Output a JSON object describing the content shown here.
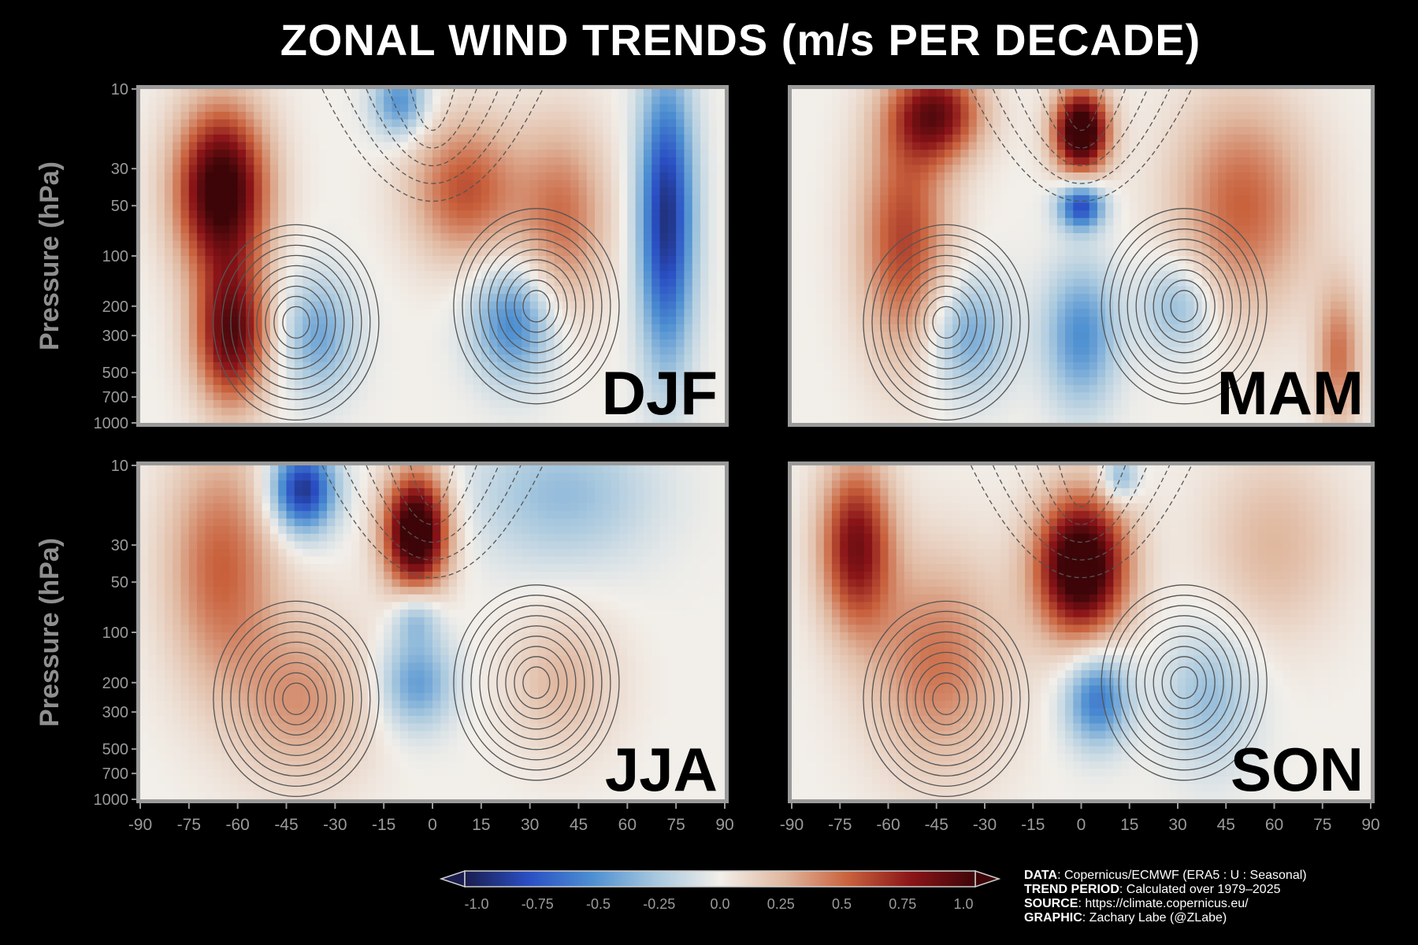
{
  "chart_data": {
    "type": "heatmap",
    "title": "ZONAL WIND TRENDS (m/s PER DECADE)",
    "ylabel": "Pressure (hPa)",
    "x_ticks": [
      "-90",
      "-75",
      "-60",
      "-45",
      "-30",
      "-15",
      "0",
      "15",
      "30",
      "45",
      "60",
      "75",
      "90"
    ],
    "x_values": [
      -90,
      -75,
      -60,
      -45,
      -30,
      -15,
      0,
      15,
      30,
      45,
      60,
      75,
      90
    ],
    "y_ticks": [
      "10",
      "30",
      "50",
      "100",
      "200",
      "300",
      "500",
      "700",
      "1000"
    ],
    "y_values": [
      10,
      30,
      50,
      100,
      200,
      300,
      500,
      700,
      1000
    ],
    "y_scale": "log",
    "xlim": [
      -90,
      90
    ],
    "ylim": [
      1000,
      10
    ],
    "panels": [
      {
        "label": "DJF",
        "blobs": [
          {
            "lat": -65,
            "p": 40,
            "amp": 1.1,
            "sx": 10,
            "sy": 0.35
          },
          {
            "lat": -62,
            "p": 300,
            "amp": 0.9,
            "sx": 8,
            "sy": 0.3
          },
          {
            "lat": -35,
            "p": 300,
            "amp": -0.4,
            "sx": 8,
            "sy": 0.25
          },
          {
            "lat": 25,
            "p": 250,
            "amp": -0.55,
            "sx": 9,
            "sy": 0.25
          },
          {
            "lat": 10,
            "p": 40,
            "amp": 0.55,
            "sx": 12,
            "sy": 0.3
          },
          {
            "lat": 72,
            "p": 60,
            "amp": -0.9,
            "sx": 6,
            "sy": 0.6
          },
          {
            "lat": -10,
            "p": 12,
            "amp": -0.5,
            "sx": 6,
            "sy": 0.15
          },
          {
            "lat": 40,
            "p": 60,
            "amp": 0.45,
            "sx": 10,
            "sy": 0.4
          }
        ]
      },
      {
        "label": "MAM",
        "blobs": [
          {
            "lat": 0,
            "p": 18,
            "amp": 1.2,
            "sx": 6,
            "sy": 0.18
          },
          {
            "lat": 0,
            "p": 50,
            "amp": -0.8,
            "sx": 5,
            "sy": 0.1
          },
          {
            "lat": -55,
            "p": 80,
            "amp": 0.6,
            "sx": 10,
            "sy": 0.5
          },
          {
            "lat": -45,
            "p": 14,
            "amp": 0.8,
            "sx": 10,
            "sy": 0.2
          },
          {
            "lat": 50,
            "p": 50,
            "amp": 0.5,
            "sx": 15,
            "sy": 0.45
          },
          {
            "lat": -35,
            "p": 300,
            "amp": -0.4,
            "sx": 9,
            "sy": 0.25
          },
          {
            "lat": 0,
            "p": 300,
            "amp": -0.5,
            "sx": 8,
            "sy": 0.3
          },
          {
            "lat": 30,
            "p": 200,
            "amp": -0.35,
            "sx": 8,
            "sy": 0.2
          },
          {
            "lat": 80,
            "p": 400,
            "amp": 0.45,
            "sx": 5,
            "sy": 0.3
          }
        ]
      },
      {
        "label": "JJA",
        "blobs": [
          {
            "lat": -65,
            "p": 40,
            "amp": 0.5,
            "sx": 12,
            "sy": 0.5
          },
          {
            "lat": -40,
            "p": 14,
            "amp": -0.9,
            "sx": 7,
            "sy": 0.18
          },
          {
            "lat": -5,
            "p": 25,
            "amp": 1.2,
            "sx": 7,
            "sy": 0.25
          },
          {
            "lat": -40,
            "p": 250,
            "amp": 0.35,
            "sx": 15,
            "sy": 0.35
          },
          {
            "lat": -5,
            "p": 200,
            "amp": -0.45,
            "sx": 8,
            "sy": 0.2
          },
          {
            "lat": 40,
            "p": 200,
            "amp": 0.25,
            "sx": 12,
            "sy": 0.3
          },
          {
            "lat": 40,
            "p": 15,
            "amp": -0.3,
            "sx": 20,
            "sy": 0.3
          },
          {
            "lat": -5,
            "p": 80,
            "amp": -0.35,
            "sx": 5,
            "sy": 0.12
          }
        ]
      },
      {
        "label": "SON",
        "blobs": [
          {
            "lat": -70,
            "p": 30,
            "amp": 0.8,
            "sx": 8,
            "sy": 0.35
          },
          {
            "lat": 0,
            "p": 40,
            "amp": 1.2,
            "sx": 10,
            "sy": 0.3
          },
          {
            "lat": 12,
            "p": 12,
            "amp": -0.4,
            "sx": 4,
            "sy": 0.1
          },
          {
            "lat": -45,
            "p": 150,
            "amp": 0.45,
            "sx": 15,
            "sy": 0.45
          },
          {
            "lat": 5,
            "p": 250,
            "amp": -0.6,
            "sx": 7,
            "sy": 0.2
          },
          {
            "lat": 40,
            "p": 250,
            "amp": -0.3,
            "sx": 10,
            "sy": 0.3
          },
          {
            "lat": 60,
            "p": 30,
            "amp": 0.25,
            "sx": 15,
            "sy": 0.4
          }
        ]
      }
    ],
    "colorbar": {
      "ticks": [
        "-1.0",
        "-0.75",
        "-0.5",
        "-0.25",
        "0.0",
        "0.25",
        "0.5",
        "0.75",
        "1.0"
      ],
      "range": [
        -1.0,
        1.0
      ],
      "colors": [
        "#1a1d4d",
        "#2a4fc4",
        "#4d8fd1",
        "#a8c8de",
        "#f2efea",
        "#e0b8a0",
        "#c9623d",
        "#8a1418",
        "#3d0508"
      ],
      "extend": "both"
    },
    "credits": [
      {
        "key": "DATA",
        "value": ": Copernicus/ECMWF (ERA5 : U : Seasonal)"
      },
      {
        "key": "TREND PERIOD",
        "value": ": Calculated over 1979–2025"
      },
      {
        "key": "SOURCE",
        "value": ": https://climate.copernicus.eu/"
      },
      {
        "key": "GRAPHIC",
        "value": ": Zachary Labe (@ZLabe)"
      }
    ],
    "colors": {
      "background": "#000000",
      "frame": "#9a9a9a",
      "tick_text": "#9a9a9a",
      "axis_label": "#8f8f8f",
      "contour": "#555555"
    }
  }
}
